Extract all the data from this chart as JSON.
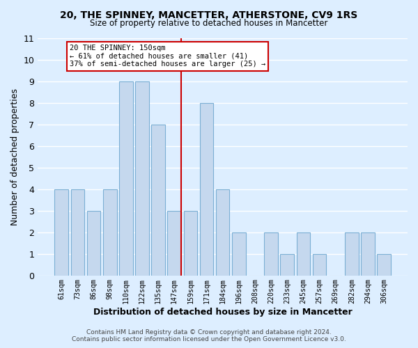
{
  "title": "20, THE SPINNEY, MANCETTER, ATHERSTONE, CV9 1RS",
  "subtitle": "Size of property relative to detached houses in Mancetter",
  "xlabel": "Distribution of detached houses by size in Mancetter",
  "ylabel": "Number of detached properties",
  "footer_line1": "Contains HM Land Registry data © Crown copyright and database right 2024.",
  "footer_line2": "Contains public sector information licensed under the Open Government Licence v3.0.",
  "bar_labels": [
    "61sqm",
    "73sqm",
    "86sqm",
    "98sqm",
    "110sqm",
    "122sqm",
    "135sqm",
    "147sqm",
    "159sqm",
    "171sqm",
    "184sqm",
    "196sqm",
    "208sqm",
    "220sqm",
    "233sqm",
    "245sqm",
    "257sqm",
    "269sqm",
    "282sqm",
    "294sqm",
    "306sqm"
  ],
  "bar_values": [
    4,
    4,
    3,
    4,
    9,
    9,
    7,
    3,
    3,
    8,
    4,
    2,
    0,
    2,
    1,
    2,
    1,
    0,
    2,
    2,
    1
  ],
  "bar_color": "#c5d8ee",
  "bar_edge_color": "#7bafd4",
  "grid_color": "#ffffff",
  "background_color": "#ddeeff",
  "annotation_title": "20 THE SPINNEY: 150sqm",
  "annotation_line1": "← 61% of detached houses are smaller (41)",
  "annotation_line2": "37% of semi-detached houses are larger (25) →",
  "reference_line_color": "#cc0000",
  "annotation_box_edge_color": "#cc0000",
  "ylim": [
    0,
    11
  ],
  "yticks": [
    0,
    1,
    2,
    3,
    4,
    5,
    6,
    7,
    8,
    9,
    10,
    11
  ]
}
